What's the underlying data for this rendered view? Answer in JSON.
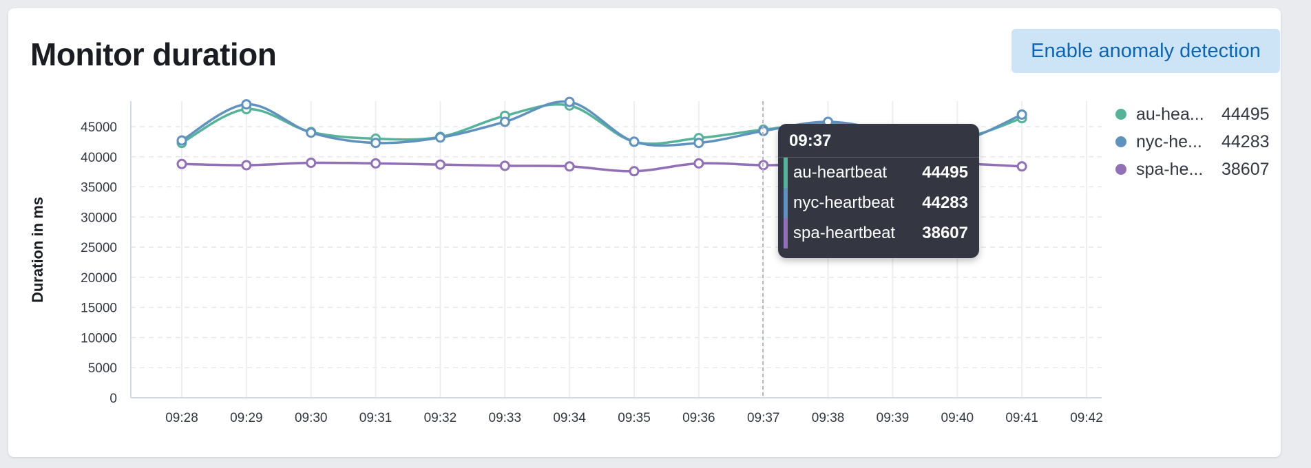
{
  "panel": {
    "title": "Monitor duration",
    "anomaly_button_label": "Enable anomaly detection"
  },
  "chart_data": {
    "type": "line",
    "xlabel": "",
    "ylabel": "Duration in ms",
    "ylim": [
      0,
      45000
    ],
    "yticks": [
      0,
      5000,
      10000,
      15000,
      20000,
      25000,
      30000,
      35000,
      40000,
      45000
    ],
    "categories": [
      "09:28",
      "09:29",
      "09:30",
      "09:31",
      "09:32",
      "09:33",
      "09:34",
      "09:35",
      "09:36",
      "09:37",
      "09:38",
      "09:39",
      "09:40",
      "09:41",
      "09:42"
    ],
    "grid": true,
    "series": [
      {
        "name": "au-heartbeat",
        "color": "#54b399",
        "values": [
          42300,
          47900,
          44100,
          43000,
          43300,
          46800,
          48500,
          42500,
          43100,
          44495,
          45500,
          44500,
          43000,
          46400,
          null
        ]
      },
      {
        "name": "nyc-heartbeat",
        "color": "#6092c0",
        "values": [
          42700,
          48700,
          44000,
          42300,
          43200,
          45800,
          49100,
          42500,
          42300,
          44283,
          45800,
          44200,
          42600,
          47000,
          null
        ]
      },
      {
        "name": "spa-heartbeat",
        "color": "#9170b8",
        "values": [
          38800,
          38600,
          39000,
          38900,
          38700,
          38500,
          38400,
          37600,
          38900,
          38607,
          38800,
          39000,
          38900,
          38400,
          null
        ]
      }
    ],
    "legend": [
      {
        "name": "au-hea...",
        "value": "44495",
        "color": "#54b399"
      },
      {
        "name": "nyc-he...",
        "value": "44283",
        "color": "#6092c0"
      },
      {
        "name": "spa-he...",
        "value": "38607",
        "color": "#9170b8"
      }
    ],
    "tooltip": {
      "x": "09:37",
      "rows": [
        {
          "name": "au-heartbeat",
          "value": "44495",
          "color": "#54b399"
        },
        {
          "name": "nyc-heartbeat",
          "value": "44283",
          "color": "#6092c0"
        },
        {
          "name": "spa-heartbeat",
          "value": "38607",
          "color": "#9170b8"
        }
      ]
    }
  }
}
